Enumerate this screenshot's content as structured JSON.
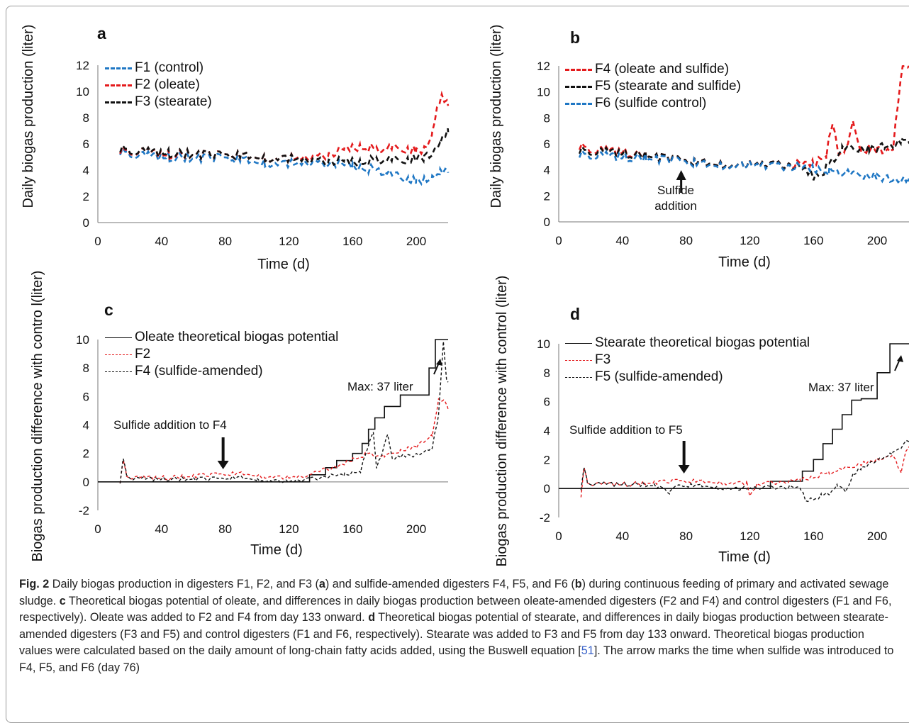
{
  "caption": {
    "lead": "Fig. 2",
    "text_1": "  Daily biogas production in digesters F1, F2, and F3 (",
    "a": "a",
    "text_2": ") and sulfide-amended digesters F4, F5, and F6 (",
    "b": "b",
    "text_3": ") during continuous feeding of primary and activated sewage sludge. ",
    "c": "c",
    "text_4": " Theoretical biogas potential of oleate, and differences in daily biogas production between oleate-amended digesters (F2 and F4) and control digesters (F1 and F6, respectively). Oleate was added to F2 and F4 from day 133 onward. ",
    "d": "d",
    "text_5": " Theoretical biogas potential of stearate, and differences in daily biogas production between stearate-amended digesters (F3 and F5) and control digesters (F1 and F6, respectively). Stearate was added to F3 and F5 from day 133 onward. Theoretical biogas production values were calculated based on the daily amount of long-chain fatty acids added, using the Buswell equation [",
    "ref": "51",
    "text_6": "]. The arrow marks the time when sulfide was introduced to F4, F5, and F6 (day 76)"
  },
  "chart_data": [
    {
      "panel": "a",
      "type": "line",
      "xlabel": "Time (d)",
      "ylabel": "Daily biogas production (liter)",
      "xlim": [
        0,
        220
      ],
      "ylim": [
        0,
        12
      ],
      "xticks": [
        0,
        40,
        80,
        120,
        160,
        200
      ],
      "yticks": [
        0,
        2,
        4,
        6,
        8,
        10,
        12
      ],
      "grid": false,
      "legend": "top-left",
      "series": [
        {
          "name": "F1 (control)",
          "color": "#1f77c4",
          "x": [
            14,
            30,
            45,
            60,
            75,
            90,
            105,
            120,
            135,
            150,
            160,
            170,
            180,
            190,
            195,
            200,
            205,
            210,
            215,
            220
          ],
          "y": [
            5.4,
            5.1,
            5.0,
            4.9,
            4.9,
            4.8,
            4.6,
            4.5,
            4.5,
            4.5,
            4.3,
            4.1,
            3.9,
            3.5,
            3.3,
            3.2,
            3.3,
            3.5,
            3.8,
            3.8
          ]
        },
        {
          "name": "F2 (oleate)",
          "color": "#e41a1c",
          "x": [
            14,
            30,
            45,
            60,
            75,
            90,
            105,
            120,
            135,
            145,
            155,
            165,
            175,
            185,
            195,
            200,
            205,
            210,
            213,
            216,
            220
          ],
          "y": [
            5.5,
            5.4,
            5.2,
            5.2,
            5.1,
            5.1,
            5.0,
            4.9,
            4.9,
            5.2,
            5.6,
            5.8,
            5.6,
            5.7,
            5.6,
            5.5,
            5.6,
            6.8,
            8.8,
            9.5,
            8.9
          ]
        },
        {
          "name": "F3 (stearate)",
          "color": "#111111",
          "x": [
            14,
            30,
            45,
            60,
            75,
            90,
            105,
            120,
            135,
            145,
            155,
            165,
            175,
            185,
            195,
            205,
            210,
            215,
            220
          ],
          "y": [
            5.6,
            5.4,
            5.3,
            5.2,
            5.1,
            5.1,
            5.0,
            4.9,
            4.7,
            4.7,
            4.7,
            4.6,
            4.8,
            4.8,
            4.8,
            5.0,
            5.3,
            6.1,
            6.9
          ]
        }
      ]
    },
    {
      "panel": "b",
      "type": "line",
      "xlabel": "Time (d)",
      "ylabel": "Daily biogas production (liter)",
      "xlim": [
        0,
        220
      ],
      "ylim": [
        0,
        12
      ],
      "xticks": [
        0,
        40,
        80,
        120,
        160,
        200
      ],
      "yticks": [
        0,
        2,
        4,
        6,
        8,
        10,
        12
      ],
      "grid": false,
      "legend": "top-left",
      "annotation": {
        "text_1": "Sulfide",
        "text_2": "addition",
        "x": 76
      },
      "series": [
        {
          "name": "F4 (oleate and sulfide)",
          "color": "#e41a1c",
          "x": [
            13,
            25,
            40,
            55,
            70,
            85,
            100,
            115,
            130,
            145,
            160,
            168,
            172,
            176,
            180,
            185,
            190,
            195,
            200,
            205,
            210,
            213,
            216,
            220
          ],
          "y": [
            5.8,
            5.5,
            5.4,
            5.1,
            4.8,
            4.6,
            4.5,
            4.4,
            4.4,
            4.4,
            4.5,
            5.2,
            7.5,
            5.4,
            5.4,
            7.6,
            5.5,
            5.6,
            5.6,
            5.5,
            5.6,
            9.0,
            11.8,
            12.0
          ]
        },
        {
          "name": "F5 (stearate and sulfide)",
          "color": "#111111",
          "x": [
            13,
            25,
            40,
            55,
            70,
            85,
            100,
            115,
            130,
            145,
            155,
            160,
            165,
            170,
            178,
            185,
            195,
            205,
            210,
            215,
            220
          ],
          "y": [
            5.5,
            5.4,
            5.3,
            5.1,
            4.8,
            4.6,
            4.5,
            4.4,
            4.4,
            4.4,
            4.0,
            3.5,
            3.7,
            4.5,
            5.6,
            5.7,
            5.6,
            5.9,
            5.9,
            6.1,
            6.2
          ]
        },
        {
          "name": "F6 (sulfide control)",
          "color": "#1f77c4",
          "x": [
            13,
            25,
            40,
            55,
            70,
            85,
            100,
            115,
            130,
            145,
            160,
            170,
            180,
            190,
            200,
            210,
            215,
            220
          ],
          "y": [
            5.2,
            5.1,
            5.0,
            4.9,
            4.7,
            4.5,
            4.4,
            4.4,
            4.3,
            4.3,
            4.1,
            3.9,
            3.8,
            3.6,
            3.5,
            3.3,
            3.2,
            3.1
          ]
        }
      ]
    },
    {
      "panel": "c",
      "type": "line",
      "xlabel": "Time (d)",
      "ylabel": "Biogas production difference with contro l(liter)",
      "xlim": [
        0,
        220
      ],
      "ylim": [
        -2,
        10
      ],
      "xticks": [
        0,
        40,
        80,
        120,
        160,
        200
      ],
      "yticks": [
        -2,
        0,
        2,
        4,
        6,
        8,
        10
      ],
      "grid": false,
      "legend": "top-left",
      "annotation": {
        "text": "Sulfide addition to F4",
        "x": 76,
        "max_text": "Max: 37 liter"
      },
      "series": [
        {
          "name": "Oleate theoretical biogas potential",
          "color": "#111111",
          "style": "step",
          "x": [
            0,
            133,
            133,
            143,
            143,
            150,
            150,
            160,
            160,
            166,
            166,
            170,
            170,
            174,
            174,
            180,
            180,
            190,
            190,
            200,
            200,
            208,
            208,
            212,
            212,
            220
          ],
          "y": [
            0,
            0,
            0.5,
            0.5,
            1.0,
            1.0,
            1.5,
            1.5,
            2.0,
            2.0,
            2.7,
            2.7,
            3.7,
            3.7,
            4.5,
            4.5,
            5.3,
            5.3,
            6.1,
            6.1,
            6.1,
            6.1,
            8.0,
            8.0,
            10.0,
            10.0
          ]
        },
        {
          "name": "F2",
          "color": "#e41a1c",
          "x": [
            14,
            16,
            18,
            22,
            30,
            45,
            60,
            75,
            90,
            105,
            120,
            133,
            140,
            150,
            160,
            170,
            180,
            190,
            200,
            210,
            214,
            218,
            220
          ],
          "y": [
            0,
            1.5,
            0.5,
            0.3,
            0.3,
            0.3,
            0.4,
            0.5,
            0.6,
            0.4,
            0.3,
            0.4,
            0.9,
            1.0,
            1.6,
            2.0,
            1.8,
            2.2,
            2.5,
            3.3,
            5.7,
            5.6,
            5.1
          ]
        },
        {
          "name": "F4 (sulfide-amended)",
          "color": "#111111",
          "x": [
            14,
            16,
            18,
            22,
            30,
            45,
            60,
            75,
            90,
            100,
            110,
            120,
            133,
            145,
            155,
            165,
            173,
            175,
            178,
            182,
            185,
            190,
            200,
            210,
            214,
            217,
            219,
            220
          ],
          "y": [
            0,
            1.6,
            0.6,
            0.2,
            0.2,
            0.2,
            0.2,
            0.2,
            0.3,
            0.2,
            0.1,
            0.0,
            0.2,
            0.4,
            0.5,
            0.8,
            3.6,
            1.0,
            1.8,
            3.3,
            1.7,
            1.8,
            1.9,
            2.4,
            4.6,
            9.8,
            7.2,
            7.0
          ]
        }
      ]
    },
    {
      "panel": "d",
      "type": "line",
      "xlabel": "Time (d)",
      "ylabel": "Biogas production difference with control (liter)",
      "xlim": [
        0,
        220
      ],
      "ylim": [
        -2,
        10
      ],
      "xticks": [
        0,
        40,
        80,
        120,
        160,
        200
      ],
      "yticks": [
        -2,
        0,
        2,
        4,
        6,
        8,
        10
      ],
      "grid": false,
      "legend": "top-left",
      "annotation": {
        "text": "Sulfide addition to F5",
        "x": 76,
        "max_text": "Max: 37 liter"
      },
      "series": [
        {
          "name": "Stearate theoretical biogas potential",
          "color": "#111111",
          "style": "step",
          "x": [
            0,
            133,
            133,
            153,
            153,
            160,
            160,
            166,
            166,
            172,
            172,
            178,
            178,
            184,
            184,
            190,
            190,
            200,
            200,
            208,
            208,
            212,
            212,
            220
          ],
          "y": [
            0,
            0,
            0.5,
            0.5,
            1.2,
            1.2,
            2.0,
            2.0,
            3.1,
            3.1,
            4.1,
            4.1,
            5.1,
            5.1,
            6.1,
            6.1,
            6.2,
            6.2,
            8.0,
            8.0,
            10.0,
            10.0,
            10.0,
            10.0
          ]
        },
        {
          "name": "F3",
          "color": "#e41a1c",
          "x": [
            14,
            16,
            18,
            22,
            30,
            45,
            60,
            75,
            90,
            105,
            118,
            120,
            125,
            133,
            145,
            152,
            160,
            170,
            180,
            190,
            200,
            210,
            215,
            218,
            220
          ],
          "y": [
            -0.5,
            1.4,
            0.5,
            0.3,
            0.3,
            0.3,
            0.4,
            0.5,
            0.5,
            0.4,
            0.4,
            -0.5,
            0.3,
            0.4,
            0.5,
            0.6,
            0.8,
            1.1,
            1.4,
            1.7,
            2.0,
            2.3,
            1.0,
            2.6,
            2.9
          ]
        },
        {
          "name": "F5 (sulfide-amended)",
          "color": "#111111",
          "x": [
            14,
            16,
            18,
            22,
            30,
            45,
            60,
            70,
            75,
            90,
            100,
            110,
            120,
            133,
            145,
            152,
            155,
            160,
            165,
            170,
            175,
            180,
            185,
            190,
            200,
            210,
            215,
            220
          ],
          "y": [
            0,
            1.4,
            0.5,
            0.3,
            0.3,
            0.3,
            0.2,
            -0.3,
            0.2,
            0.2,
            0.1,
            0.0,
            0.0,
            0.1,
            0.1,
            0.0,
            -0.8,
            -0.7,
            -0.5,
            -0.3,
            0.2,
            -0.2,
            1.0,
            1.4,
            2.0,
            2.4,
            2.8,
            3.4
          ]
        }
      ]
    }
  ]
}
